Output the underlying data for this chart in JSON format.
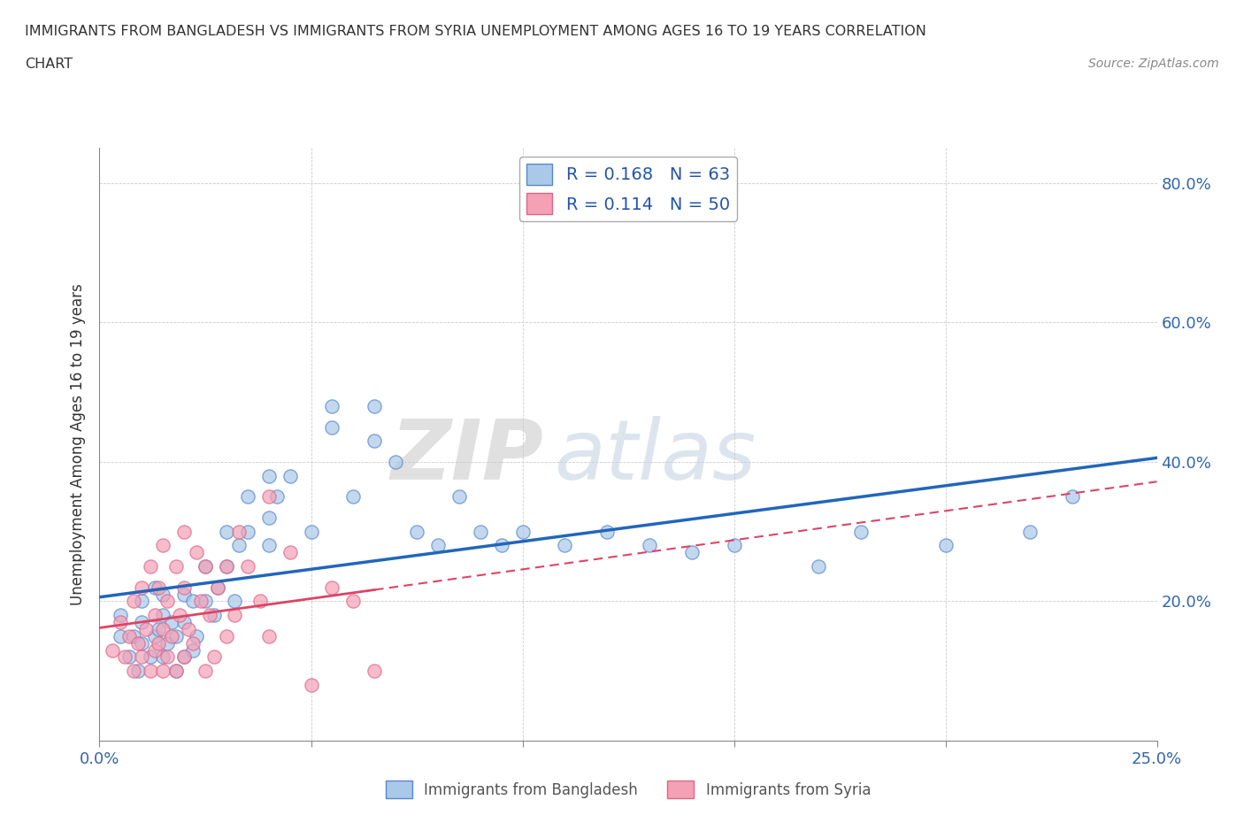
{
  "title_line1": "IMMIGRANTS FROM BANGLADESH VS IMMIGRANTS FROM SYRIA UNEMPLOYMENT AMONG AGES 16 TO 19 YEARS CORRELATION",
  "title_line2": "CHART",
  "source_text": "Source: ZipAtlas.com",
  "ylabel": "Unemployment Among Ages 16 to 19 years",
  "xlim": [
    0.0,
    0.25
  ],
  "ylim": [
    0.0,
    0.85
  ],
  "x_tick_positions": [
    0.0,
    0.05,
    0.1,
    0.15,
    0.2,
    0.25
  ],
  "x_tick_labels": [
    "0.0%",
    "",
    "",
    "",
    "",
    "25.0%"
  ],
  "y_tick_positions": [
    0.0,
    0.2,
    0.4,
    0.6,
    0.8
  ],
  "y_tick_labels_right": [
    "",
    "20.0%",
    "40.0%",
    "60.0%",
    "80.0%"
  ],
  "bangladesh_color": "#aac8e8",
  "bangladesh_edge_color": "#5588cc",
  "syria_color": "#f4a0b5",
  "syria_edge_color": "#dd6688",
  "trend_bangladesh_color": "#2266bb",
  "trend_syria_color": "#dd4466",
  "R_bangladesh": 0.168,
  "N_bangladesh": 63,
  "R_syria": 0.114,
  "N_syria": 50,
  "watermark_zip": "ZIP",
  "watermark_atlas": "atlas",
  "bangladesh_x": [
    0.005,
    0.005,
    0.007,
    0.008,
    0.009,
    0.01,
    0.01,
    0.01,
    0.012,
    0.013,
    0.013,
    0.014,
    0.015,
    0.015,
    0.015,
    0.016,
    0.017,
    0.018,
    0.018,
    0.02,
    0.02,
    0.02,
    0.022,
    0.022,
    0.023,
    0.025,
    0.025,
    0.027,
    0.028,
    0.03,
    0.03,
    0.032,
    0.033,
    0.035,
    0.035,
    0.04,
    0.04,
    0.04,
    0.042,
    0.045,
    0.05,
    0.055,
    0.055,
    0.06,
    0.065,
    0.065,
    0.07,
    0.075,
    0.08,
    0.085,
    0.09,
    0.095,
    0.1,
    0.11,
    0.12,
    0.13,
    0.14,
    0.15,
    0.17,
    0.18,
    0.2,
    0.22,
    0.23
  ],
  "bangladesh_y": [
    0.15,
    0.18,
    0.12,
    0.15,
    0.1,
    0.14,
    0.17,
    0.2,
    0.12,
    0.15,
    0.22,
    0.16,
    0.12,
    0.18,
    0.21,
    0.14,
    0.17,
    0.1,
    0.15,
    0.12,
    0.17,
    0.21,
    0.13,
    0.2,
    0.15,
    0.25,
    0.2,
    0.18,
    0.22,
    0.25,
    0.3,
    0.2,
    0.28,
    0.35,
    0.3,
    0.32,
    0.28,
    0.38,
    0.35,
    0.38,
    0.3,
    0.45,
    0.48,
    0.35,
    0.43,
    0.48,
    0.4,
    0.3,
    0.28,
    0.35,
    0.3,
    0.28,
    0.3,
    0.28,
    0.3,
    0.28,
    0.27,
    0.28,
    0.25,
    0.3,
    0.28,
    0.3,
    0.35
  ],
  "syria_x": [
    0.003,
    0.005,
    0.006,
    0.007,
    0.008,
    0.008,
    0.009,
    0.01,
    0.01,
    0.011,
    0.012,
    0.012,
    0.013,
    0.013,
    0.014,
    0.014,
    0.015,
    0.015,
    0.015,
    0.016,
    0.016,
    0.017,
    0.018,
    0.018,
    0.019,
    0.02,
    0.02,
    0.02,
    0.021,
    0.022,
    0.023,
    0.024,
    0.025,
    0.025,
    0.026,
    0.027,
    0.028,
    0.03,
    0.03,
    0.032,
    0.033,
    0.035,
    0.038,
    0.04,
    0.04,
    0.045,
    0.05,
    0.055,
    0.06,
    0.065
  ],
  "syria_y": [
    0.13,
    0.17,
    0.12,
    0.15,
    0.1,
    0.2,
    0.14,
    0.12,
    0.22,
    0.16,
    0.1,
    0.25,
    0.13,
    0.18,
    0.14,
    0.22,
    0.1,
    0.16,
    0.28,
    0.12,
    0.2,
    0.15,
    0.1,
    0.25,
    0.18,
    0.12,
    0.22,
    0.3,
    0.16,
    0.14,
    0.27,
    0.2,
    0.1,
    0.25,
    0.18,
    0.12,
    0.22,
    0.15,
    0.25,
    0.18,
    0.3,
    0.25,
    0.2,
    0.15,
    0.35,
    0.27,
    0.08,
    0.22,
    0.2,
    0.1
  ]
}
